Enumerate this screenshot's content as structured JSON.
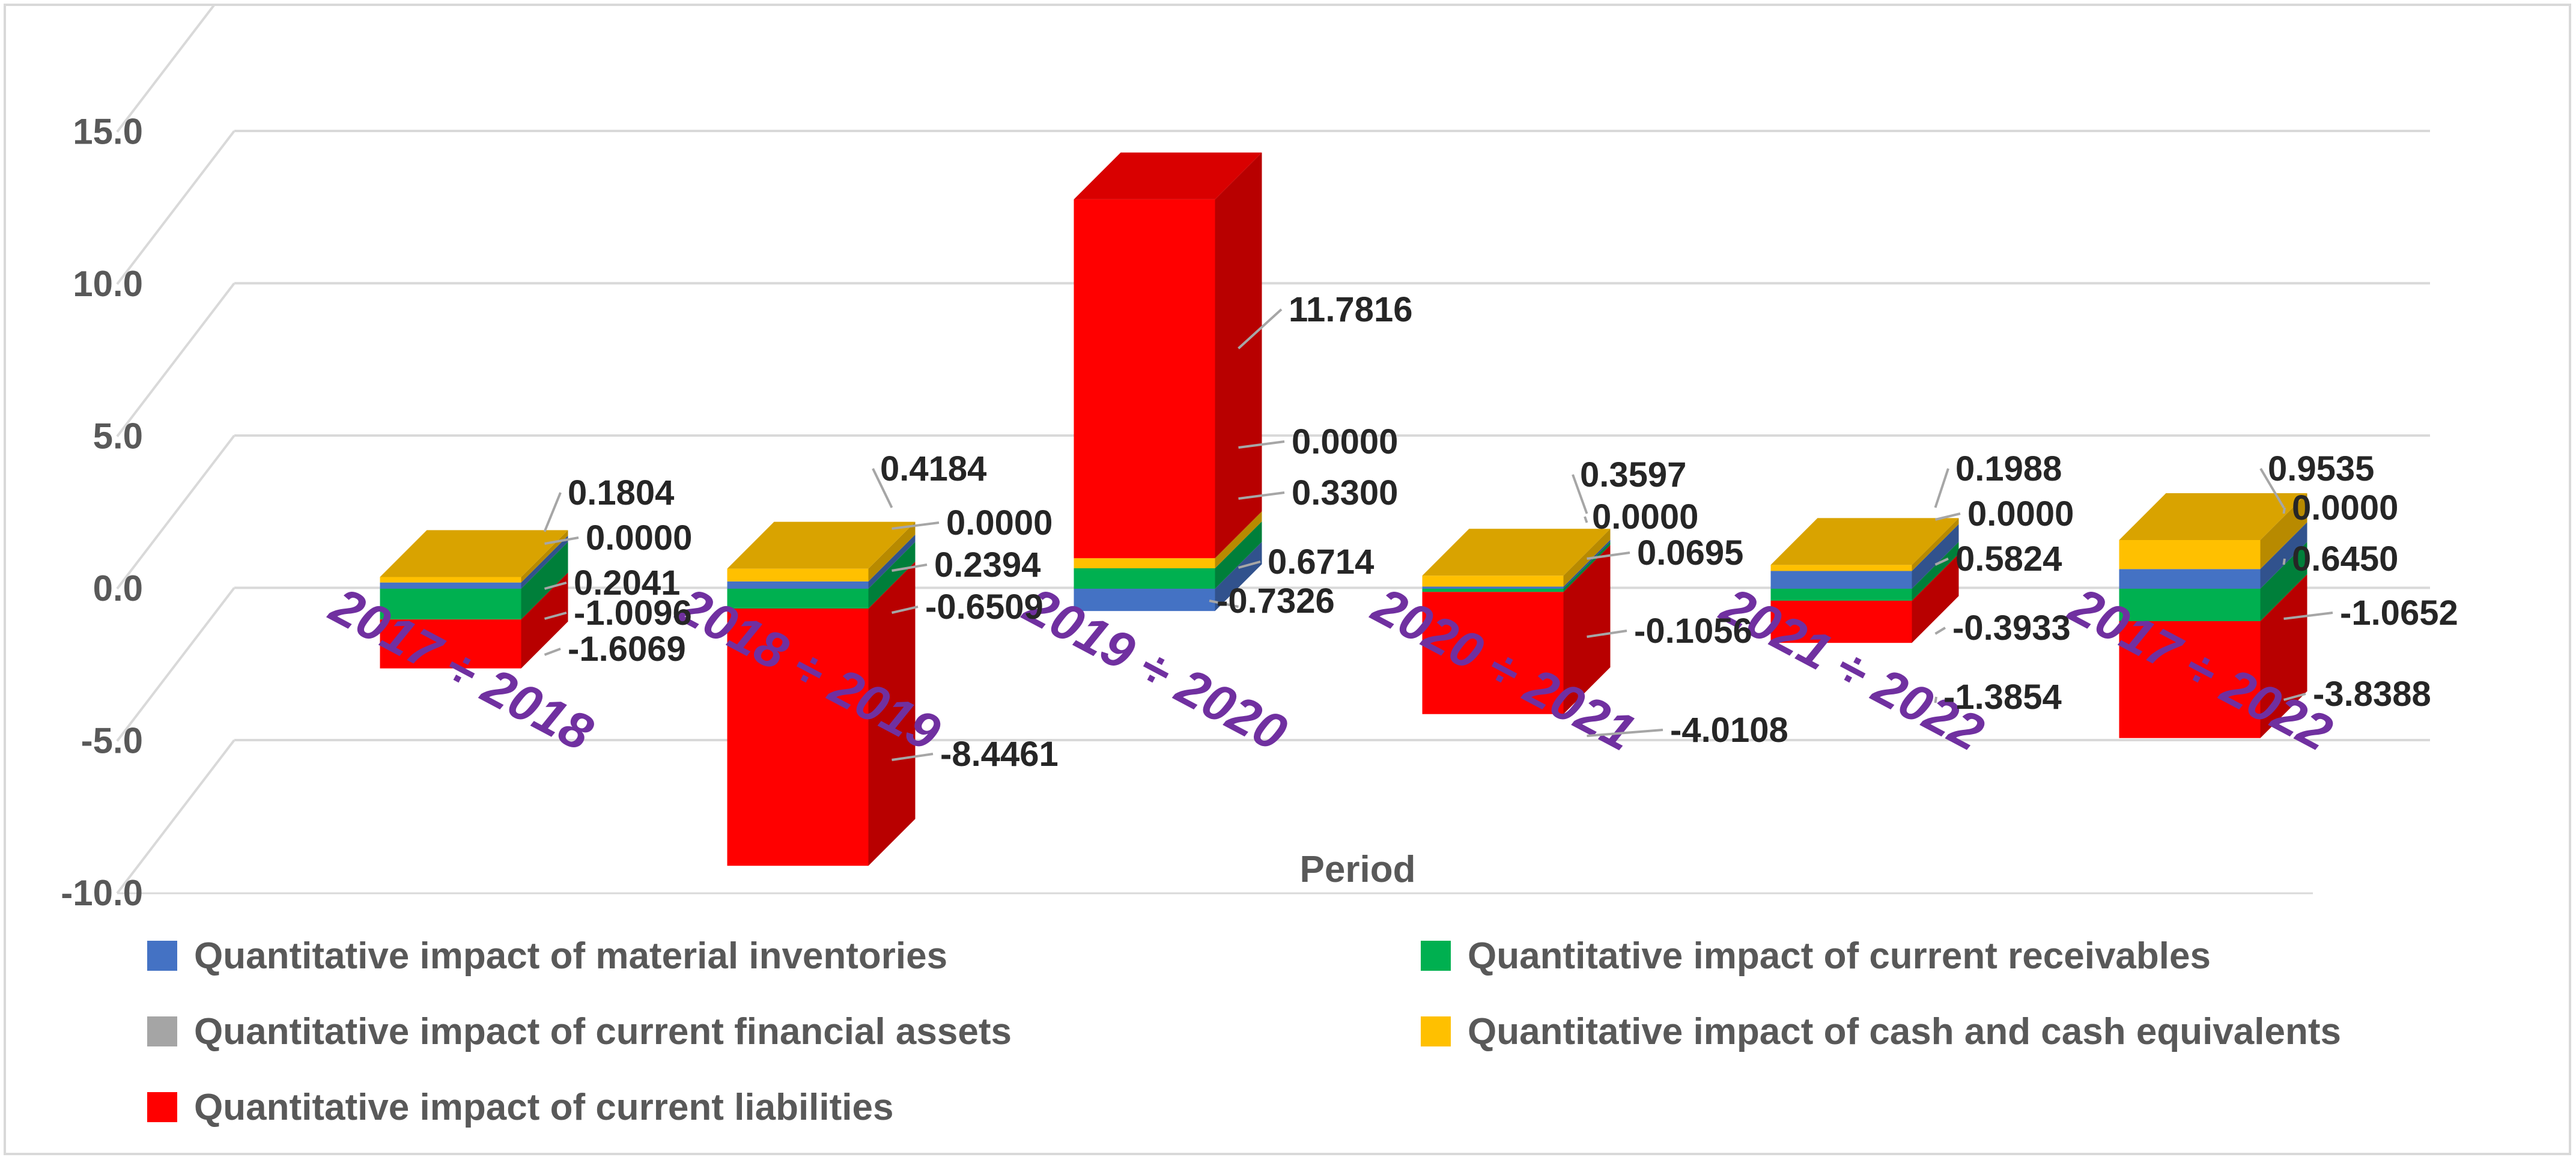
{
  "chart_data": {
    "type": "bar",
    "subtype": "3d-stacked-column",
    "title": "",
    "xlabel": "Period",
    "ylabel": "",
    "ylim": [
      -10,
      15
    ],
    "yticks": [
      "15.0",
      "10.0",
      "5.0",
      "0.0",
      "-5.0",
      "-10.0"
    ],
    "categories": [
      "2017 ÷ 2018",
      "2018 ÷ 2019",
      "2019 ÷ 2020",
      "2020 ÷ 2021",
      "2021 ÷ 2022",
      "2017 ÷ 2022"
    ],
    "series": [
      {
        "name": "Quantitative impact of material inventories",
        "color": "#4472c4",
        "values": [
          0.2041,
          0.2394,
          -0.7326,
          0.0695,
          0.5824,
          0.645
        ]
      },
      {
        "name": "Quantitative impact of current receivables",
        "color": "#00b050",
        "values": [
          -1.0096,
          -0.6509,
          0.6714,
          -0.1056,
          -0.3933,
          -1.0652
        ]
      },
      {
        "name": "Quantitative impact of current financial assets",
        "color": "#a5a5a5",
        "values": [
          0.0,
          0.0,
          0.0,
          0.0,
          0.0,
          0.0
        ]
      },
      {
        "name": "Quantitative impact of cash and cash equivalents",
        "color": "#ffc000",
        "values": [
          0.1804,
          0.4184,
          0.33,
          0.3597,
          0.1988,
          0.9535
        ]
      },
      {
        "name": "Quantitative impact of current liabilities",
        "color": "#ff0000",
        "values": [
          -1.6069,
          -8.4461,
          11.7816,
          -4.0108,
          -1.3854,
          -3.8388
        ]
      }
    ],
    "data_labels": [
      [
        "0.1804",
        "0.0000",
        "0.2041",
        "-1.0096",
        "-1.6069"
      ],
      [
        "0.4184",
        "0.0000",
        "0.2394",
        "-0.6509",
        "-8.4461"
      ],
      [
        "11.7816",
        "0.0000",
        "0.3300",
        "0.6714",
        "-0.7326"
      ],
      [
        "0.3597",
        "0.0000",
        "0.0695",
        "-0.1056",
        "-4.0108"
      ],
      [
        "0.1988",
        "0.0000",
        "0.5824",
        "-0.3933",
        "-1.3854"
      ],
      [
        "0.9535",
        "0.0000",
        "0.6450",
        "-1.0652",
        "-3.8388"
      ]
    ],
    "legend_position": "bottom",
    "grid": true
  }
}
